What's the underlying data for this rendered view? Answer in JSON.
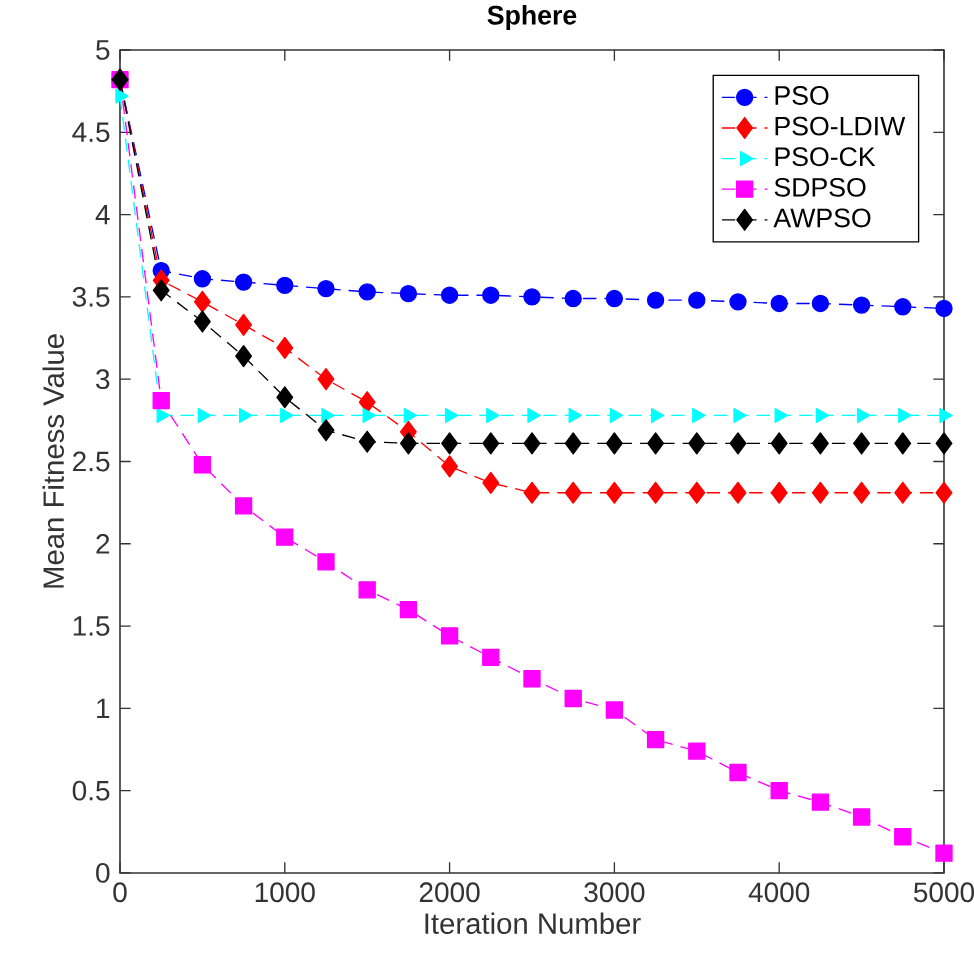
{
  "chart_data": {
    "type": "line",
    "title": "Sphere",
    "xlabel": "Iteration Number",
    "ylabel": "Mean Fitness Value",
    "x": [
      0,
      250,
      500,
      750,
      1000,
      1250,
      1500,
      1750,
      2000,
      2250,
      2500,
      2750,
      3000,
      3250,
      3500,
      3750,
      4000,
      4250,
      4500,
      4750,
      5000
    ],
    "series": [
      {
        "name": "PSO",
        "color": "#0000ff",
        "marker": "circle",
        "values": [
          4.82,
          3.66,
          3.61,
          3.59,
          3.57,
          3.55,
          3.53,
          3.52,
          3.51,
          3.51,
          3.5,
          3.49,
          3.49,
          3.48,
          3.48,
          3.47,
          3.46,
          3.46,
          3.45,
          3.44,
          3.43
        ]
      },
      {
        "name": "PSO-LDIW",
        "color": "#ff0000",
        "marker": "diamond",
        "values": [
          4.82,
          3.6,
          3.47,
          3.33,
          3.19,
          3.0,
          2.86,
          2.68,
          2.47,
          2.37,
          2.31,
          2.31,
          2.31,
          2.31,
          2.31,
          2.31,
          2.31,
          2.31,
          2.31,
          2.31,
          2.31
        ]
      },
      {
        "name": "PSO-CK",
        "color": "#00ffff",
        "marker": "triangle",
        "values": [
          4.72,
          2.78,
          2.78,
          2.78,
          2.78,
          2.78,
          2.78,
          2.78,
          2.78,
          2.78,
          2.78,
          2.78,
          2.78,
          2.78,
          2.78,
          2.78,
          2.78,
          2.78,
          2.78,
          2.78,
          2.78
        ]
      },
      {
        "name": "SDPSO",
        "color": "#ff00ff",
        "marker": "square",
        "values": [
          4.82,
          2.87,
          2.48,
          2.23,
          2.04,
          1.89,
          1.72,
          1.6,
          1.44,
          1.31,
          1.18,
          1.06,
          0.99,
          0.81,
          0.74,
          0.61,
          0.5,
          0.43,
          0.34,
          0.22,
          0.12
        ]
      },
      {
        "name": "AWPSO",
        "color": "#000000",
        "marker": "diamond",
        "values": [
          4.82,
          3.54,
          3.35,
          3.14,
          2.89,
          2.69,
          2.62,
          2.61,
          2.61,
          2.61,
          2.61,
          2.61,
          2.61,
          2.61,
          2.61,
          2.61,
          2.61,
          2.61,
          2.61,
          2.61,
          2.61
        ]
      }
    ],
    "xlim": [
      0,
      5000
    ],
    "ylim": [
      0,
      5
    ],
    "xticks": [
      0,
      1000,
      2000,
      3000,
      4000,
      5000
    ],
    "yticks": [
      0,
      0.5,
      1,
      1.5,
      2,
      2.5,
      3,
      3.5,
      4,
      4.5,
      5
    ],
    "grid": false,
    "legend": "top right",
    "line_style": "dashed"
  }
}
